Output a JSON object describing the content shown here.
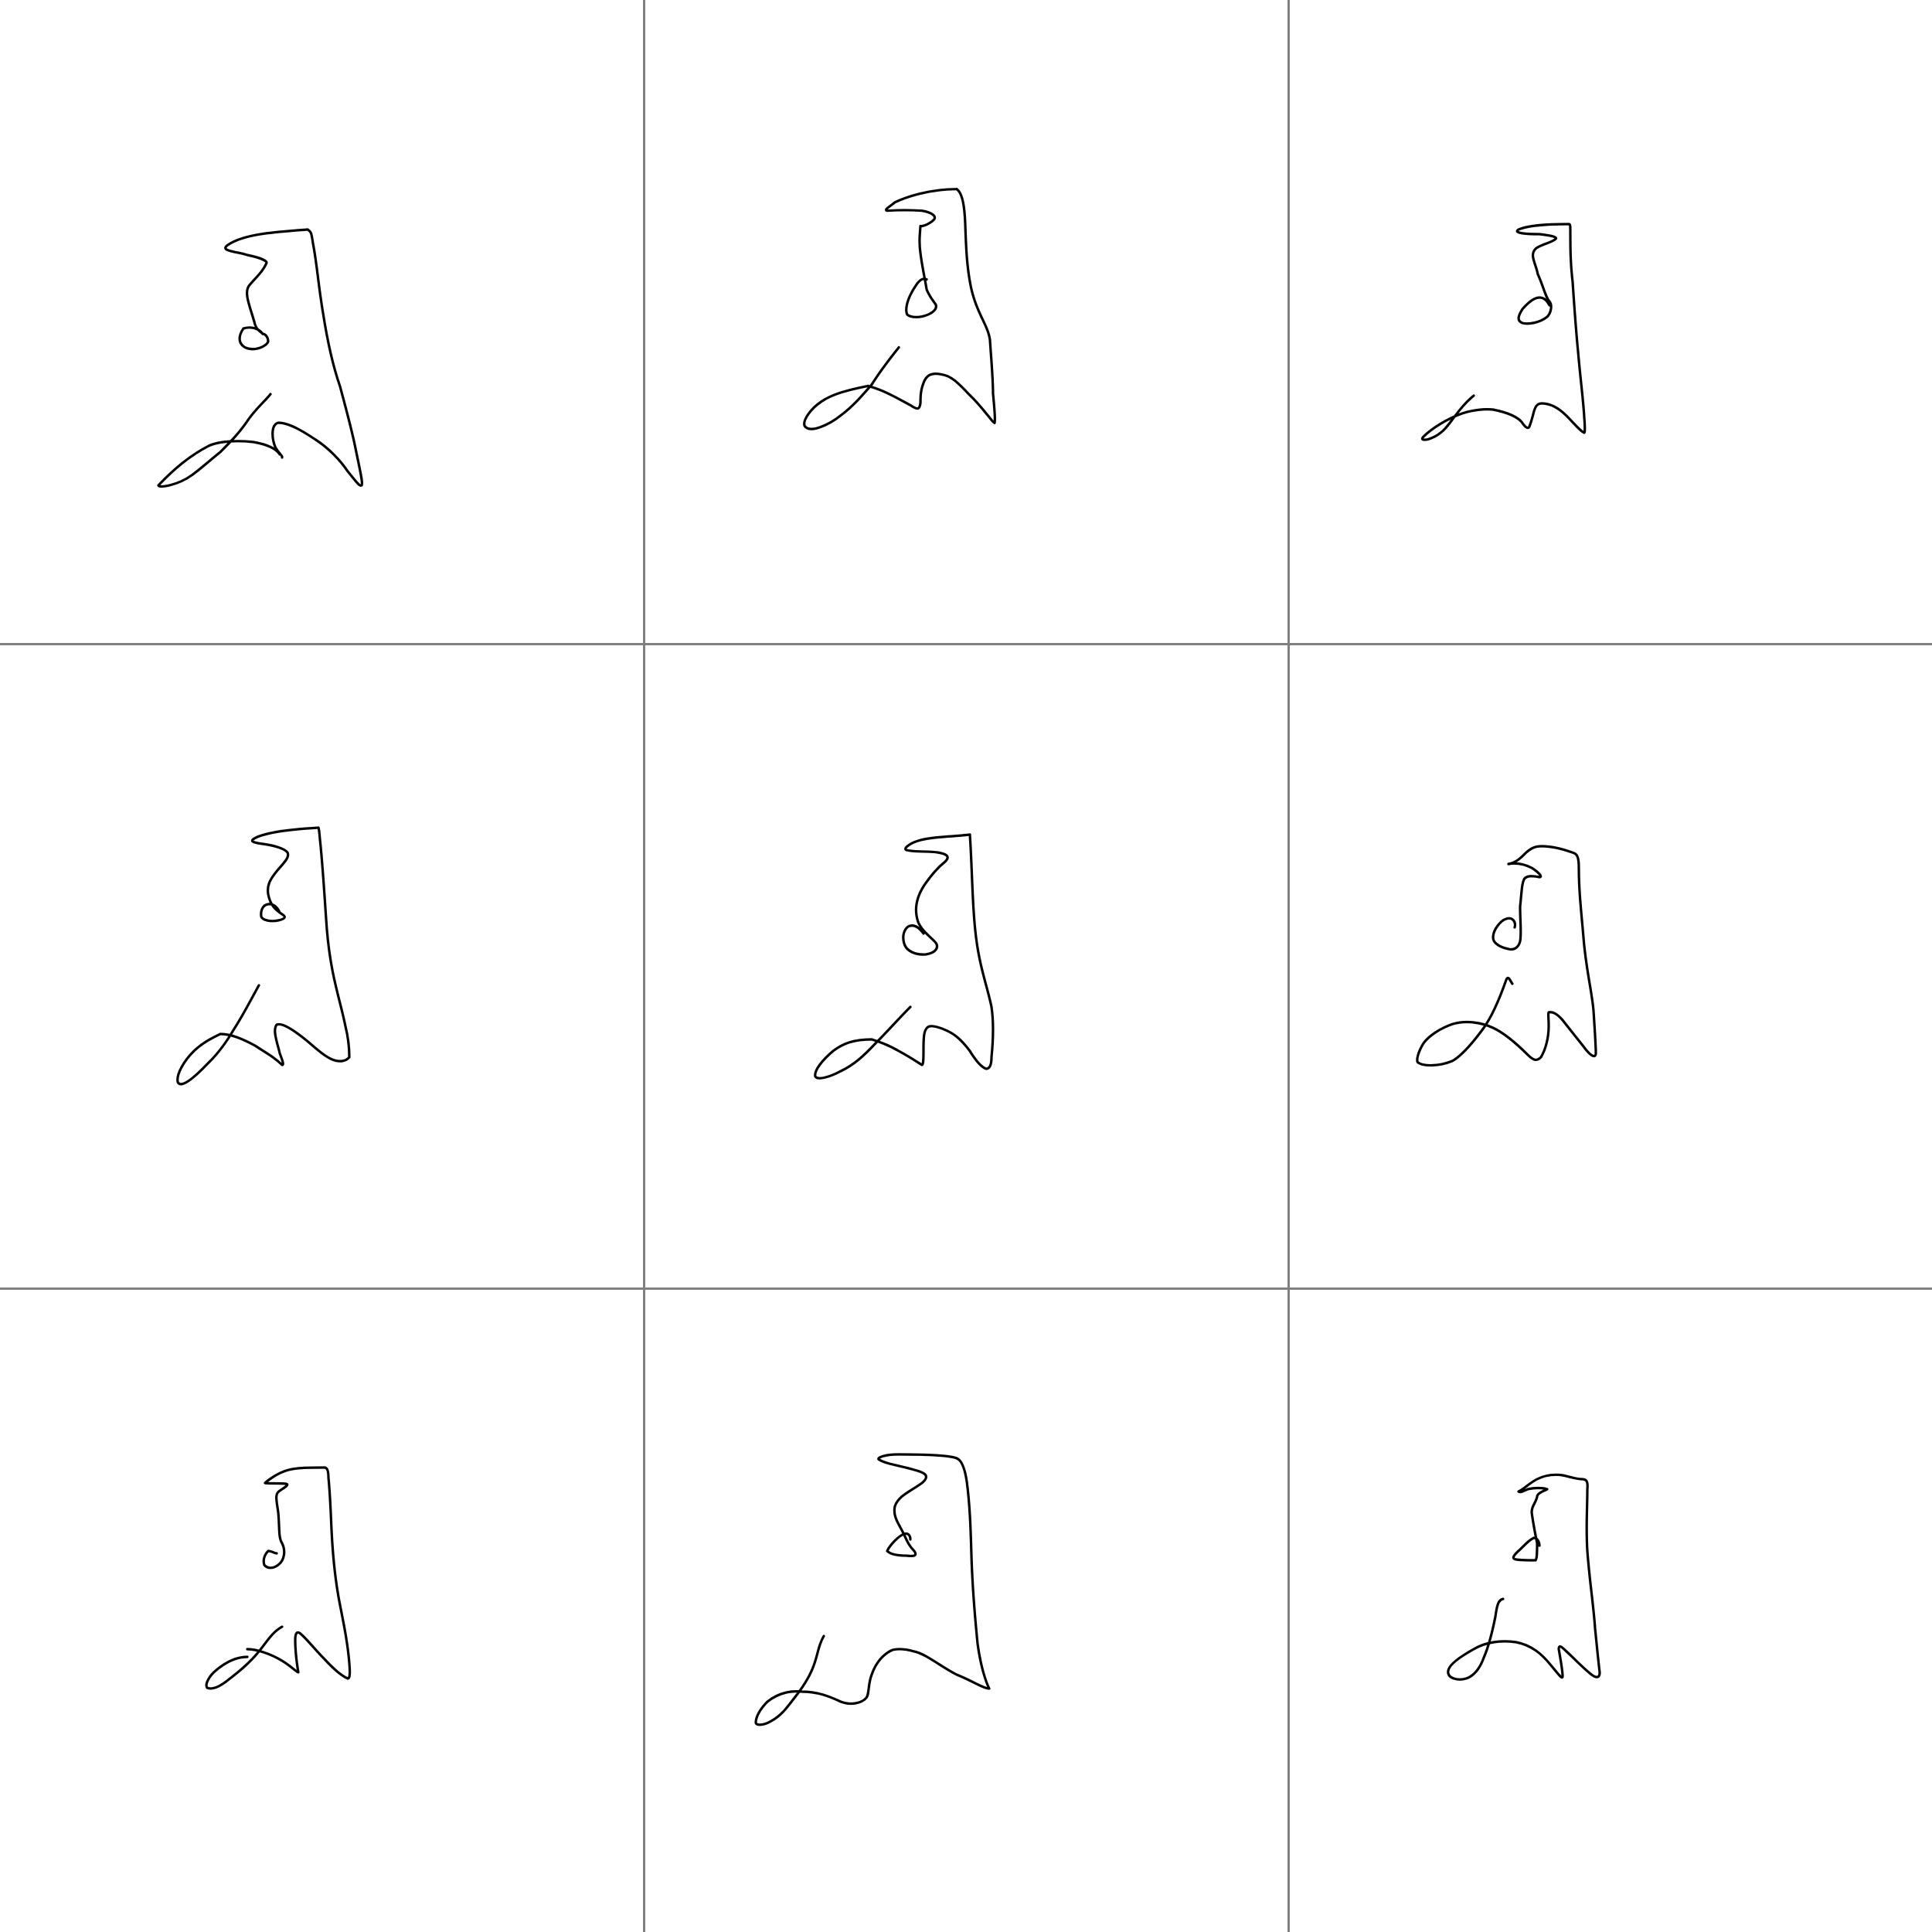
{
  "canvas": {
    "background_color": "#ffffff",
    "divider_color": "#808080",
    "stroke_color": "#000000"
  },
  "grid": {
    "rows": 3,
    "columns": 3
  },
  "cells": [
    {
      "name": "sketch-1"
    },
    {
      "name": "sketch-2"
    },
    {
      "name": "sketch-3"
    },
    {
      "name": "sketch-4"
    },
    {
      "name": "sketch-5"
    },
    {
      "name": "sketch-6"
    },
    {
      "name": "sketch-7"
    },
    {
      "name": "sketch-8"
    },
    {
      "name": "sketch-9"
    }
  ]
}
